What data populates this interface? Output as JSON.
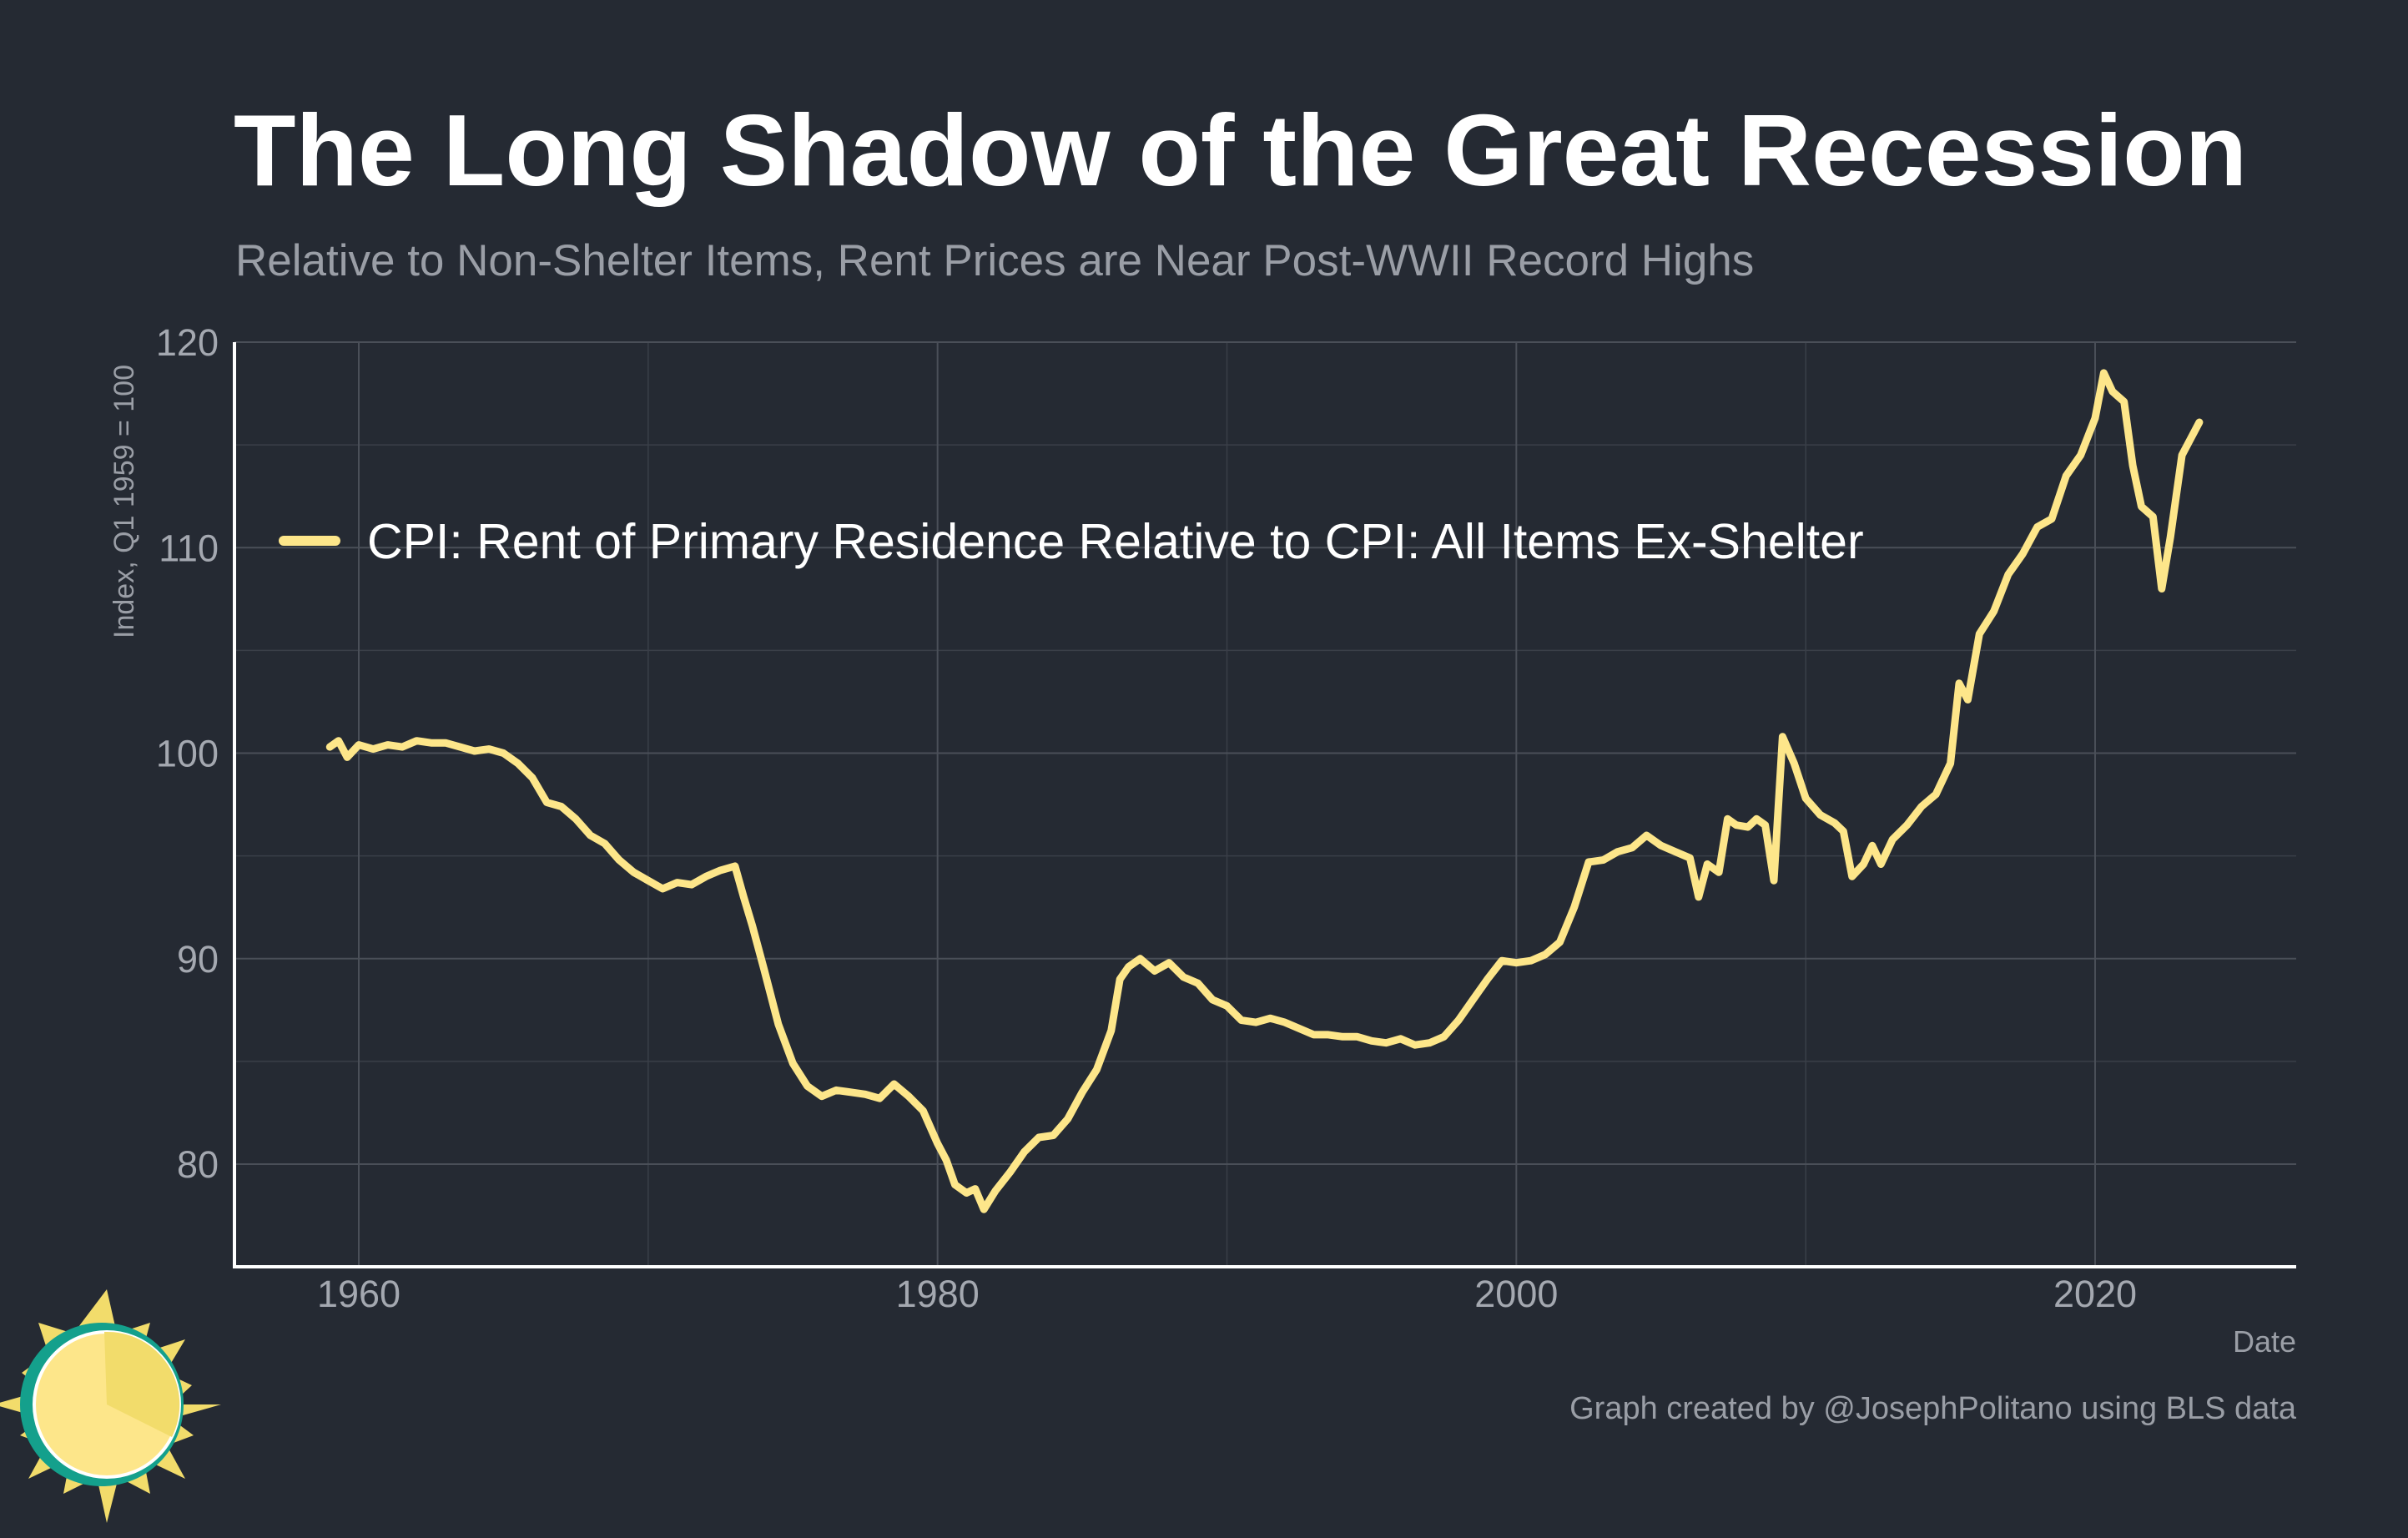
{
  "colors": {
    "background": "#252a33",
    "series": "#fde68a",
    "logo_teal": "#14a08c",
    "logo_yellow": "#fde68a",
    "logo_sun": "#f2dc6b"
  },
  "chart_data": {
    "type": "line",
    "title": "The Long Shadow of the Great Recession",
    "subtitle": "Relative to Non-Shelter Items, Rent Prices are Near Post-WWII Record Highs",
    "xlabel": "Date",
    "ylabel": "Index, Q1 1959 = 100",
    "xlim": [
      1955.8,
      2027.2
    ],
    "ylim": [
      75,
      120
    ],
    "xticks": [
      {
        "value": 1960,
        "label": "1960"
      },
      {
        "value": 1980,
        "label": "1980"
      },
      {
        "value": 2000,
        "label": "2000"
      },
      {
        "value": 2020,
        "label": "2020"
      }
    ],
    "yticks": [
      {
        "value": 80,
        "label": "80"
      },
      {
        "value": 90,
        "label": "90"
      },
      {
        "value": 100,
        "label": "100"
      },
      {
        "value": 110,
        "label": "110"
      },
      {
        "value": 120,
        "label": "120"
      }
    ],
    "legend_position": "upper-left",
    "grid": true,
    "caption": "Graph created by @JosephPolitano using BLS data",
    "series": [
      {
        "name": "CPI: Rent of Primary Residence Relative to CPI: All Items Ex-Shelter",
        "x": [
          1959.0,
          1959.3,
          1959.6,
          1960.0,
          1960.5,
          1961.0,
          1961.5,
          1962.0,
          1962.5,
          1963.0,
          1963.5,
          1964.0,
          1964.5,
          1965.0,
          1965.5,
          1966.0,
          1966.5,
          1967.0,
          1967.5,
          1968.0,
          1968.5,
          1969.0,
          1969.5,
          1970.0,
          1970.5,
          1971.0,
          1971.5,
          1972.0,
          1972.5,
          1973.0,
          1973.3,
          1973.6,
          1974.0,
          1974.5,
          1975.0,
          1975.5,
          1976.0,
          1976.5,
          1977.0,
          1977.5,
          1978.0,
          1978.5,
          1979.0,
          1979.5,
          1980.0,
          1980.3,
          1980.6,
          1981.0,
          1981.3,
          1981.6,
          1982.0,
          1982.5,
          1983.0,
          1983.5,
          1984.0,
          1984.5,
          1985.0,
          1985.5,
          1986.0,
          1986.3,
          1986.6,
          1987.0,
          1987.5,
          1988.0,
          1988.5,
          1989.0,
          1989.5,
          1990.0,
          1990.5,
          1991.0,
          1991.5,
          1992.0,
          1992.5,
          1993.0,
          1993.5,
          1994.0,
          1994.5,
          1995.0,
          1995.5,
          1996.0,
          1996.5,
          1997.0,
          1997.5,
          1998.0,
          1998.5,
          1999.0,
          1999.5,
          2000.0,
          2000.5,
          2001.0,
          2001.5,
          2002.0,
          2002.5,
          2003.0,
          2003.5,
          2004.0,
          2004.5,
          2005.0,
          2005.5,
          2006.0,
          2006.3,
          2006.6,
          2007.0,
          2007.3,
          2007.6,
          2008.0,
          2008.3,
          2008.6,
          2008.9,
          2009.2,
          2009.6,
          2010.0,
          2010.5,
          2011.0,
          2011.3,
          2011.6,
          2012.0,
          2012.3,
          2012.6,
          2013.0,
          2013.5,
          2014.0,
          2014.5,
          2015.0,
          2015.3,
          2015.6,
          2016.0,
          2016.5,
          2017.0,
          2017.5,
          2018.0,
          2018.5,
          2019.0,
          2019.5,
          2020.0,
          2020.3,
          2020.6,
          2021.0,
          2021.3,
          2021.6,
          2022.0,
          2022.3,
          2022.6,
          2023.0,
          2023.3,
          2023.6
        ],
        "values": [
          100.3,
          100.6,
          99.8,
          100.4,
          100.2,
          100.4,
          100.3,
          100.6,
          100.5,
          100.5,
          100.3,
          100.1,
          100.2,
          100.0,
          99.5,
          98.8,
          97.6,
          97.4,
          96.8,
          96.0,
          95.6,
          94.8,
          94.2,
          93.8,
          93.4,
          93.7,
          93.6,
          94.0,
          94.3,
          94.5,
          93.0,
          91.6,
          89.5,
          86.8,
          84.9,
          83.8,
          83.3,
          83.6,
          83.5,
          83.4,
          83.2,
          83.9,
          83.3,
          82.6,
          81.0,
          80.2,
          79.0,
          78.6,
          78.8,
          77.8,
          78.7,
          79.6,
          80.6,
          81.3,
          81.4,
          82.2,
          83.5,
          84.6,
          86.5,
          89.0,
          89.6,
          90.0,
          89.4,
          89.8,
          89.1,
          88.8,
          88.0,
          87.7,
          87.0,
          86.9,
          87.1,
          86.9,
          86.6,
          86.3,
          86.3,
          86.2,
          86.2,
          86.0,
          85.9,
          86.1,
          85.8,
          85.9,
          86.2,
          87.0,
          88.0,
          89.0,
          89.9,
          89.8,
          89.9,
          90.2,
          90.8,
          92.5,
          94.7,
          94.8,
          95.2,
          95.4,
          96.0,
          95.5,
          95.2,
          94.9,
          93.0,
          94.6,
          94.2,
          96.8,
          96.5,
          96.4,
          96.8,
          96.5,
          93.8,
          100.8,
          99.5,
          97.8,
          97.0,
          96.6,
          96.2,
          94.0,
          94.6,
          95.5,
          94.6,
          95.8,
          96.5,
          97.4,
          98.0,
          99.5,
          103.4,
          102.6,
          105.8,
          106.9,
          108.7,
          109.7,
          111.0,
          111.4,
          113.5,
          114.5,
          116.3,
          118.5,
          117.6,
          117.1,
          114.0,
          112.0,
          111.5,
          108.0,
          110.5,
          114.5,
          115.3,
          116.1
        ]
      }
    ]
  }
}
